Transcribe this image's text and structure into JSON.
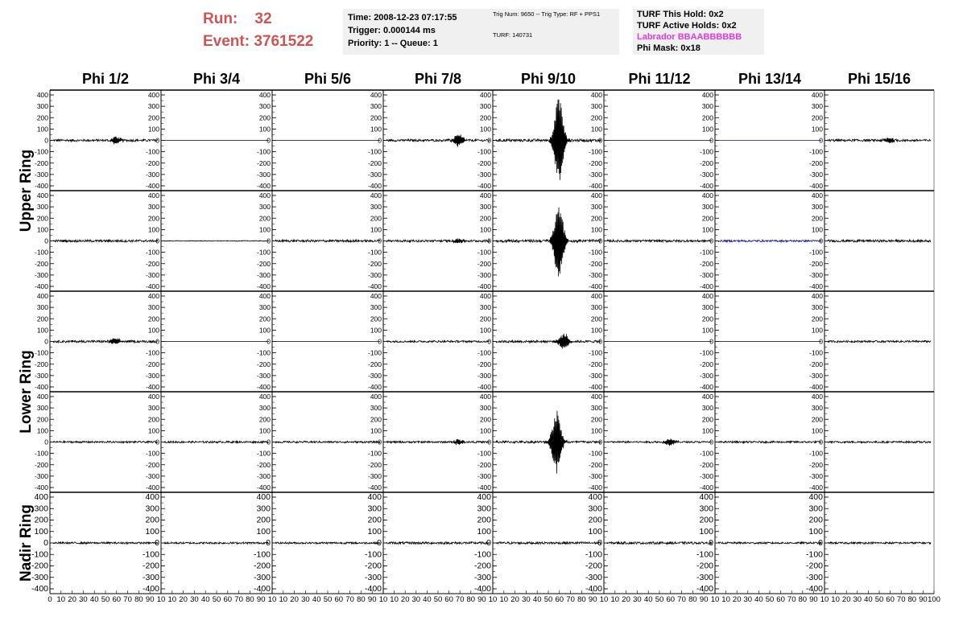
{
  "header": {
    "run_label": "Run:",
    "run_value": "32",
    "event_label": "Event:",
    "event_value": "3761522"
  },
  "info_time": {
    "time": "Time: 2008-12-23 07:17:55",
    "trigger": "Trigger: 0.000144 ms",
    "priority": "Priority: 1 -- Queue: 1"
  },
  "info_trig": {
    "trig": "Trig Num: 9650 -- Trig Type: RF + PPS1",
    "turf": "TURF: 140731"
  },
  "info_turf": {
    "hold": "TURF This Hold: 0x2",
    "active": "TURF Active Holds: 0x2",
    "labrador": "Labrador BBAABBBBBB",
    "phimask": "Phi Mask: 0x18"
  },
  "colors": {
    "title_red": "#cc5555",
    "labrador_magenta": "#e03be0",
    "trace": "#000000",
    "trace_blue": "#1a1a80"
  },
  "chart_data": {
    "type": "line",
    "columns": [
      "Phi 1/2",
      "Phi 3/4",
      "Phi 5/6",
      "Phi 7/8",
      "Phi 9/10",
      "Phi 11/12",
      "Phi 13/14",
      "Phi 15/16"
    ],
    "rows": [
      "Upper Ring",
      "Upper Ring",
      "Lower Ring",
      "Lower Ring",
      "Nadir Ring"
    ],
    "row_labels": [
      {
        "text": "Upper Ring",
        "span": [
          0,
          1
        ]
      },
      {
        "text": "Lower Ring",
        "span": [
          2,
          3
        ]
      },
      {
        "text": "Nadir Ring",
        "span": [
          4,
          4
        ]
      }
    ],
    "xlim": [
      0,
      100
    ],
    "ylim": [
      -400,
      400
    ],
    "y_ticks": [
      400,
      300,
      200,
      100,
      0,
      -100,
      -200,
      -300,
      -400
    ],
    "x_ticks_first": [
      "0",
      "10",
      "20",
      "30",
      "40",
      "50",
      "60",
      "70",
      "80",
      "90",
      "10"
    ],
    "x_ticks_other": [
      "10",
      "20",
      "30",
      "40",
      "50",
      "60",
      "70",
      "80",
      "90",
      "10"
    ],
    "x_ticks_last": [
      "10",
      "20",
      "30",
      "40",
      "50",
      "60",
      "70",
      "80",
      "90",
      "100"
    ],
    "panels": [
      [
        {
          "amp": 10,
          "peak": 60,
          "peak_amp": 30
        },
        {
          "amp": 0
        },
        {
          "amp": 0
        },
        {
          "amp": 10,
          "peak": 70,
          "peak_amp": 60
        },
        {
          "amp": 12,
          "peak": 60,
          "peak_amp": 380
        },
        {
          "amp": 0
        },
        {
          "amp": 0,
          "color": "blue"
        },
        {
          "amp": 10,
          "peak": 60,
          "peak_amp": 25
        }
      ],
      [
        {
          "amp": 10
        },
        {
          "amp": 3
        },
        {
          "amp": 10
        },
        {
          "amp": 10,
          "peak": 70,
          "peak_amp": 20
        },
        {
          "amp": 12,
          "peak": 60,
          "peak_amp": 330
        },
        {
          "amp": 10
        },
        {
          "amp": 8,
          "color": "blue"
        },
        {
          "amp": 10
        }
      ],
      [
        {
          "amp": 10,
          "peak": 60,
          "peak_amp": 30
        },
        {
          "amp": 0
        },
        {
          "amp": 0
        },
        {
          "amp": 8
        },
        {
          "amp": 10,
          "peak": 65,
          "peak_amp": 70
        },
        {
          "amp": 0
        },
        {
          "amp": 0
        },
        {
          "amp": 8
        }
      ],
      [
        {
          "amp": 8
        },
        {
          "amp": 8
        },
        {
          "amp": 8
        },
        {
          "amp": 8,
          "peak": 70,
          "peak_amp": 25
        },
        {
          "amp": 10,
          "peak": 58,
          "peak_amp": 280
        },
        {
          "amp": 8,
          "peak": 60,
          "peak_amp": 30
        },
        {
          "amp": 8
        },
        {
          "amp": 8
        }
      ],
      [
        {
          "amp": 8
        },
        {
          "amp": 8
        },
        {
          "amp": 8
        },
        {
          "amp": 10
        },
        {
          "amp": 10
        },
        {
          "amp": 10
        },
        {
          "amp": 8
        },
        {
          "amp": 8
        }
      ]
    ]
  }
}
